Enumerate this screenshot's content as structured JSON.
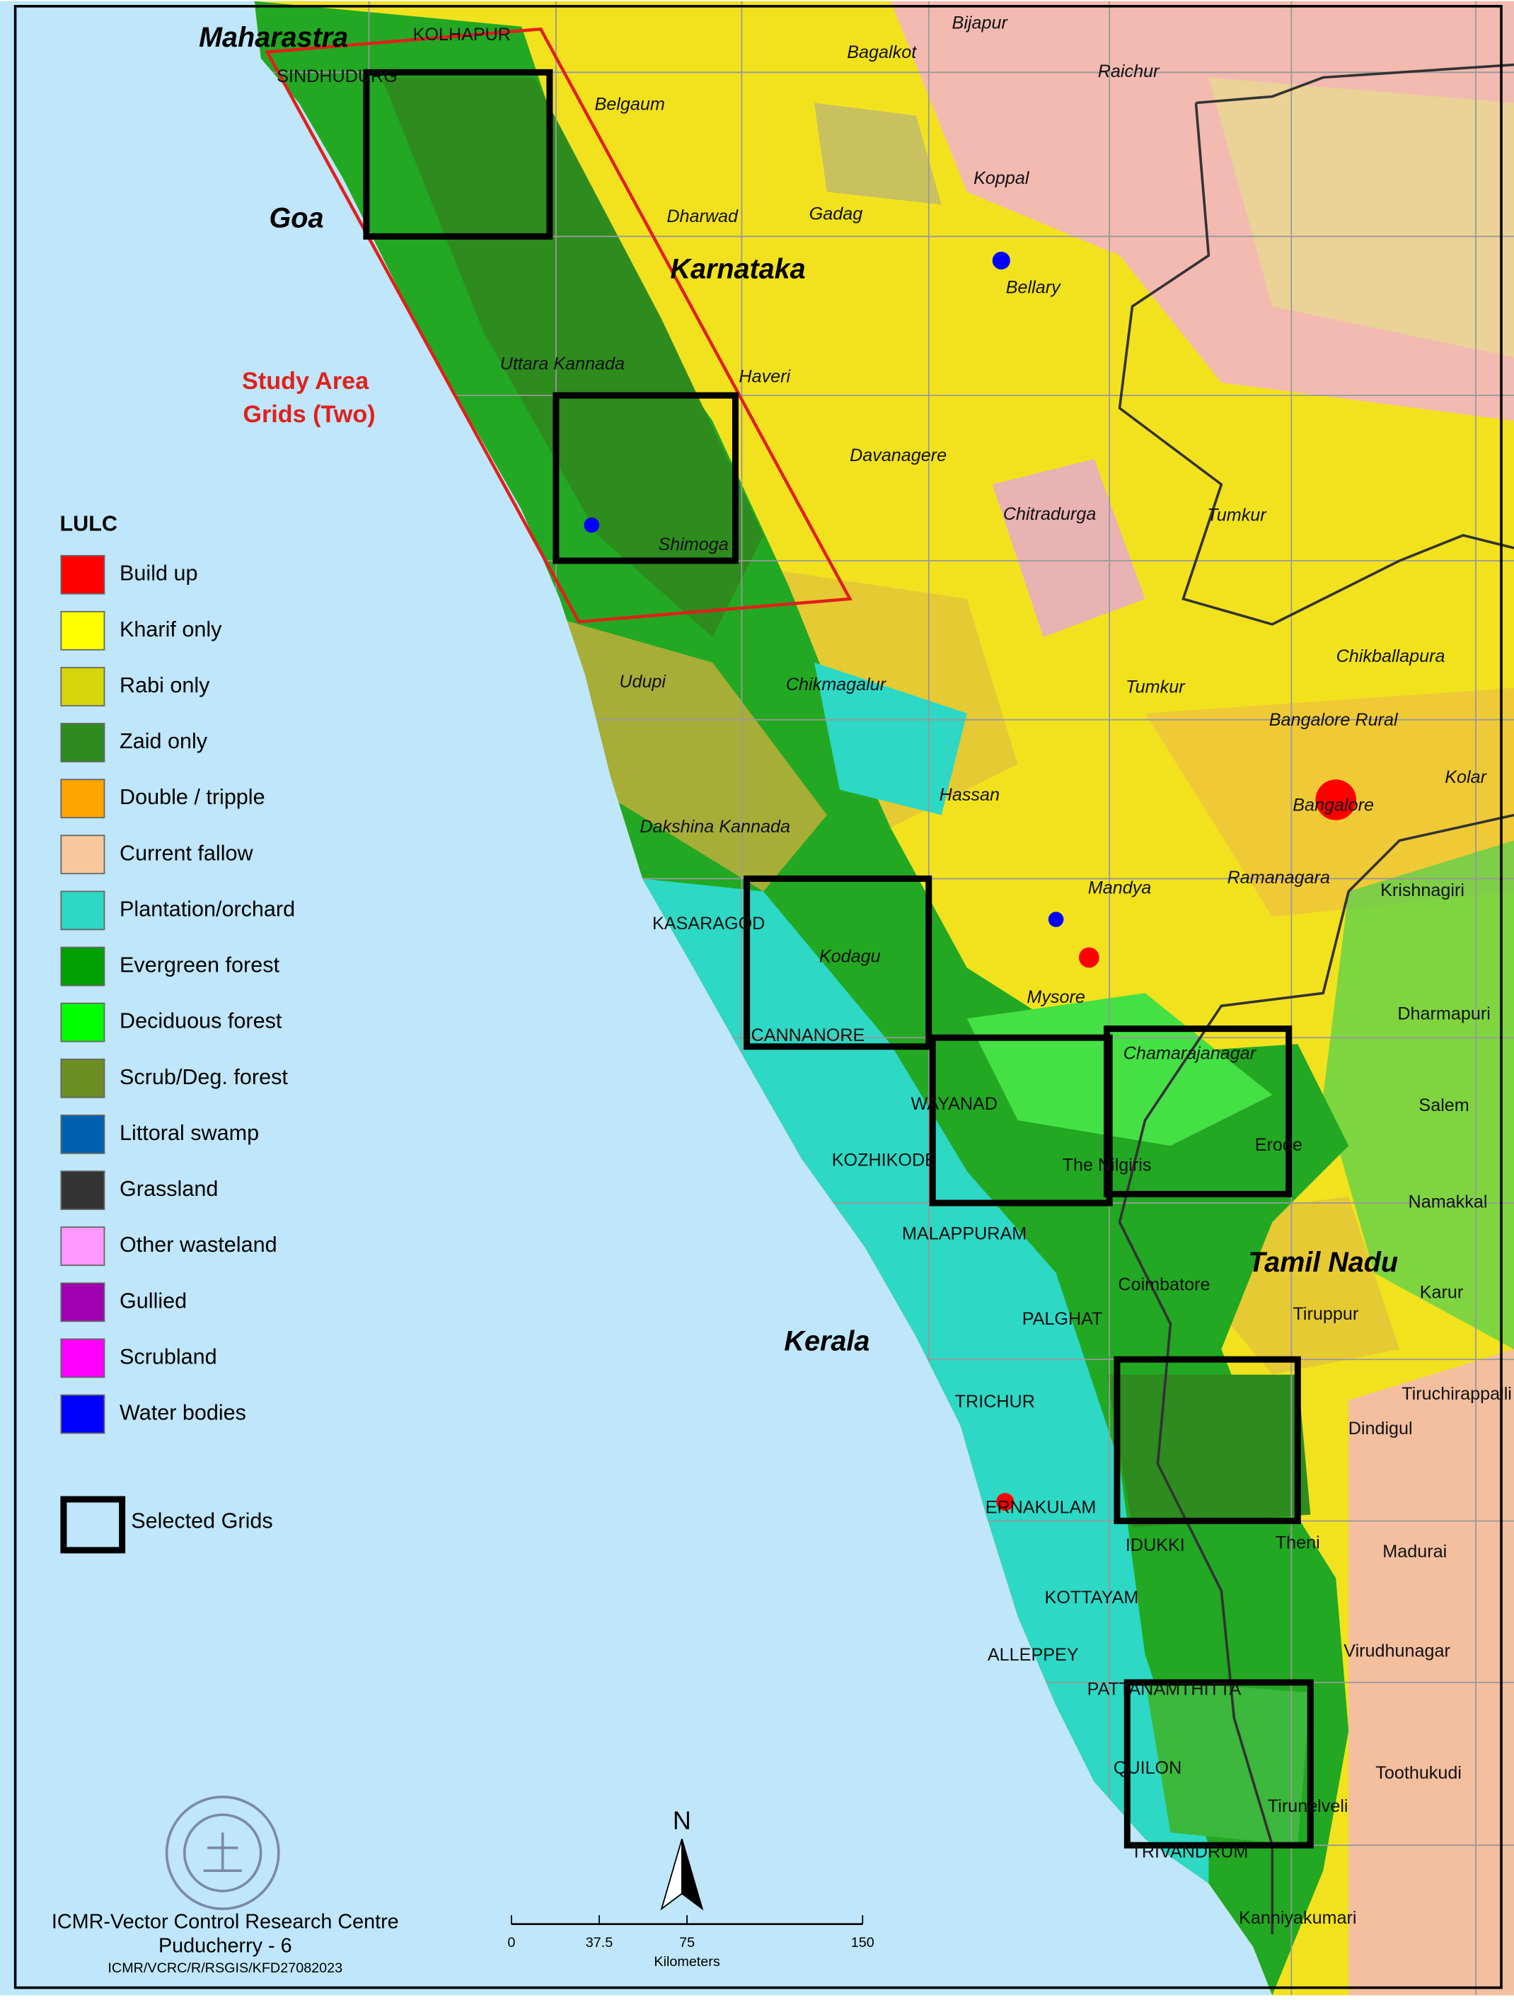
{
  "map": {
    "places": [
      "Maharastra",
      "KOLHAPUR",
      "SINDHUDURG",
      "Bijapur",
      "Bagalkot",
      "Raichur",
      "Belgaum",
      "Koppal",
      "Goa",
      "Dharwad",
      "Gadag",
      "Karnataka",
      "Bellary",
      "Uttara Kannada",
      "Haveri",
      "Davanagere",
      "Chitradurga",
      "Tumkur",
      "Shimoga",
      "Chikballapura",
      "Udupi",
      "Chikmagalur",
      "Tumkur",
      "Bangalore Rural",
      "Hassan",
      "Bangalore",
      "Kolar",
      "Dakshina Kannada",
      "Mandya",
      "Ramanagara",
      "Krishnagiri",
      "KASARAGOD",
      "Kodagu",
      "Mysore",
      "Dharmapuri",
      "CANNANORE",
      "Chamarajanagar",
      "WAYANAD",
      "Salem",
      "KOZHIKODE",
      "The Nilgiris",
      "Erode",
      "Namakkal",
      "MALAPPURAM",
      "Tamil Nadu",
      "Coimbatore",
      "Karur",
      "Kerala",
      "PALGHAT",
      "Tiruppur",
      "TRICHUR",
      "Tiruchirappalli",
      "Dindigul",
      "ERNAKULAM",
      "IDUKKI",
      "Theni",
      "Madurai",
      "KOTTAYAM",
      "ALLEPPEY",
      "Virudhunagar",
      "PATTANAMTHITTA",
      "QUILON",
      "Toothukudi",
      "Tirunelveli",
      "TRIVANDRUM",
      "Kanniyakumari"
    ],
    "study_area": [
      "Study Area",
      "Grids (Two)"
    ],
    "legend": {
      "title": "LULC",
      "items": [
        {
          "name": "Build up",
          "color": "#ff0000"
        },
        {
          "name": "Kharif only",
          "color": "#ffff00"
        },
        {
          "name": "Rabi only",
          "color": "#d6d60a"
        },
        {
          "name": "Zaid only",
          "color": "#2e8b1e"
        },
        {
          "name": "Double / tripple",
          "color": "#ffa500"
        },
        {
          "name": "Current fallow",
          "color": "#f8c89c"
        },
        {
          "name": "Plantation/orchard",
          "color": "#2dd8c4"
        },
        {
          "name": "Evergreen forest",
          "color": "#00a000"
        },
        {
          "name": "Deciduous forest",
          "color": "#00ff00"
        },
        {
          "name": "Scrub/Deg. forest",
          "color": "#6b8e23"
        },
        {
          "name": "Littoral swamp",
          "color": "#0060b0"
        },
        {
          "name": "Grassland",
          "color": "#333333"
        },
        {
          "name": "Other wasteland",
          "color": "#ff99ff"
        },
        {
          "name": "Gullied",
          "color": "#a000b0"
        },
        {
          "name": "Scrubland",
          "color": "#ff00ff"
        },
        {
          "name": "Water bodies",
          "color": "#0000ff"
        }
      ],
      "selected": "Selected Grids"
    },
    "north": "N",
    "scale_bar": {
      "ticks": [
        0,
        37.5,
        75,
        150
      ],
      "unit": "Kilometers"
    },
    "footer": [
      "ICMR-Vector Control Research Centre",
      "Puducherry - 6",
      "ICMR/VCRC/R/RSGIS/KFD27082023"
    ]
  }
}
